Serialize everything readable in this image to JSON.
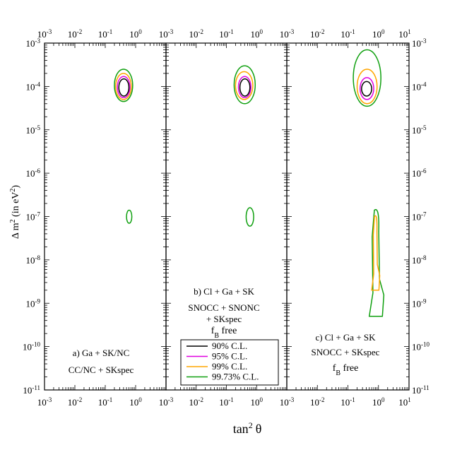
{
  "chart_data": {
    "type": "contour",
    "xlabel": "tan",
    "xlabel_sup": "2",
    "xlabel_theta": "θ",
    "ylabel": "Δ m",
    "ylabel_sup": "2",
    "ylabel_unit": " (in eV",
    "ylabel_unit_sup": "2",
    "ylabel_close": ")",
    "x_scale": "log",
    "y_scale": "log",
    "xlim": [
      0.001,
      10
    ],
    "ylim": [
      1e-11,
      0.001
    ],
    "x_tick_labels": [
      {
        "base": "10",
        "exp": "-3"
      },
      {
        "base": "10",
        "exp": "-2"
      },
      {
        "base": "10",
        "exp": "-1"
      },
      {
        "base": "10",
        "exp": "0"
      }
    ],
    "x_tick_label_last": {
      "base": "10",
      "exp": "1"
    },
    "y_tick_labels": [
      {
        "base": "10",
        "exp": "-3"
      },
      {
        "base": "10",
        "exp": "-4"
      },
      {
        "base": "10",
        "exp": "-5"
      },
      {
        "base": "10",
        "exp": "-6"
      },
      {
        "base": "10",
        "exp": "-7"
      },
      {
        "base": "10",
        "exp": "-8"
      },
      {
        "base": "10",
        "exp": "-9"
      },
      {
        "base": "10",
        "exp": "-10"
      },
      {
        "base": "10",
        "exp": "-11"
      }
    ],
    "legend_position": "bottom of panel b",
    "legend": [
      {
        "label": "90% C.L.",
        "color": "#000000"
      },
      {
        "label": "95% C.L.",
        "color": "#e000e0"
      },
      {
        "label": "99% C.L.",
        "color": "#ffa500"
      },
      {
        "label": "99.73% C.L.",
        "color": "#10a010"
      }
    ],
    "panels": [
      {
        "id": "a",
        "annotation_lines": [
          "a)  Ga + SK/NC",
          "CC/NC + SKspec"
        ],
        "fb_free": false,
        "regions": [
          {
            "level": "99.73% C.L.",
            "center": {
              "x": 0.4,
              "y": 9e-05
            },
            "x_range": [
              0.2,
              0.8
            ],
            "y_range": [
              4.5e-05,
              0.00025
            ]
          },
          {
            "level": "99% C.L.",
            "center": {
              "x": 0.4,
              "y": 9e-05
            },
            "x_range": [
              0.22,
              0.72
            ],
            "y_range": [
              5e-05,
              0.0002
            ]
          },
          {
            "level": "95% C.L.",
            "center": {
              "x": 0.4,
              "y": 0.0001
            },
            "x_range": [
              0.25,
              0.65
            ],
            "y_range": [
              5.5e-05,
              0.00017
            ]
          },
          {
            "level": "90% C.L.",
            "center": {
              "x": 0.4,
              "y": 0.0001
            },
            "x_range": [
              0.28,
              0.6
            ],
            "y_range": [
              6e-05,
              0.00015
            ]
          },
          {
            "level": "99.73% C.L.",
            "center": {
              "x": 0.6,
              "y": 1e-07
            },
            "x_range": [
              0.5,
              0.75
            ],
            "y_range": [
              7e-08,
              1.4e-07
            ]
          }
        ]
      },
      {
        "id": "b",
        "annotation_lines": [
          "b)  Cl + Ga + SK",
          "SNOCC + SNONC",
          "+ SKspec"
        ],
        "fb_line": {
          "f": "f",
          "sub": "B",
          "rest": " free"
        },
        "fb_free": true,
        "regions": [
          {
            "level": "99.73% C.L.",
            "center": {
              "x": 0.4,
              "y": 0.0001
            },
            "x_range": [
              0.18,
              0.9
            ],
            "y_range": [
              4e-05,
              0.0003
            ]
          },
          {
            "level": "99% C.L.",
            "center": {
              "x": 0.4,
              "y": 0.0001
            },
            "x_range": [
              0.2,
              0.75
            ],
            "y_range": [
              5e-05,
              0.00022
            ]
          },
          {
            "level": "95% C.L.",
            "center": {
              "x": 0.4,
              "y": 0.0001
            },
            "x_range": [
              0.25,
              0.65
            ],
            "y_range": [
              5.5e-05,
              0.00017
            ]
          },
          {
            "level": "90% C.L.",
            "center": {
              "x": 0.4,
              "y": 0.0001
            },
            "x_range": [
              0.28,
              0.6
            ],
            "y_range": [
              6e-05,
              0.00015
            ]
          },
          {
            "level": "99.73% C.L.",
            "center": {
              "x": 0.6,
              "y": 1e-07
            },
            "x_range": [
              0.45,
              0.8
            ],
            "y_range": [
              6e-08,
              1.6e-07
            ]
          }
        ]
      },
      {
        "id": "c",
        "annotation_lines": [
          "c)  Cl + Ga + SK",
          "SNOCC + SKspec"
        ],
        "fb_line": {
          "f": "f",
          "sub": "B",
          "rest": " free"
        },
        "fb_free": true,
        "regions": [
          {
            "level": "99.73% C.L.",
            "center": {
              "x": 0.5,
              "y": 0.0001
            },
            "x_range": [
              0.15,
              1.2
            ],
            "y_range": [
              3.5e-05,
              0.0007
            ]
          },
          {
            "level": "99% C.L.",
            "center": {
              "x": 0.5,
              "y": 0.0001
            },
            "x_range": [
              0.2,
              0.9
            ],
            "y_range": [
              4e-05,
              0.00025
            ]
          },
          {
            "level": "95% C.L.",
            "center": {
              "x": 0.5,
              "y": 0.0001
            },
            "x_range": [
              0.25,
              0.7
            ],
            "y_range": [
              5e-05,
              0.00016
            ]
          },
          {
            "level": "90% C.L.",
            "center": {
              "x": 0.5,
              "y": 0.0001
            },
            "x_range": [
              0.28,
              0.6
            ],
            "y_range": [
              6e-05,
              0.00013
            ]
          },
          {
            "level": "99.73% C.L.",
            "description": "elongated band",
            "x_range": [
              0.5,
              1.5
            ],
            "y_range": [
              5e-10,
              1.4e-07
            ]
          },
          {
            "level": "99% C.L.",
            "description": "inner band",
            "x_range": [
              0.6,
              1.1
            ],
            "y_range": [
              2e-09,
              1e-07
            ]
          }
        ]
      }
    ]
  }
}
